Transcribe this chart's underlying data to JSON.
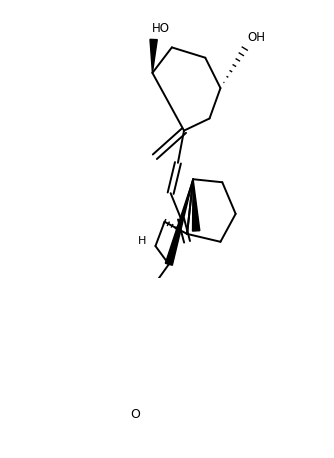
{
  "bg": "#ffffff",
  "lw": 1.4,
  "figw": 3.34,
  "figh": 4.58,
  "dpi": 100,
  "xlim": [
    0,
    334
  ],
  "ylim": [
    0,
    458
  ]
}
